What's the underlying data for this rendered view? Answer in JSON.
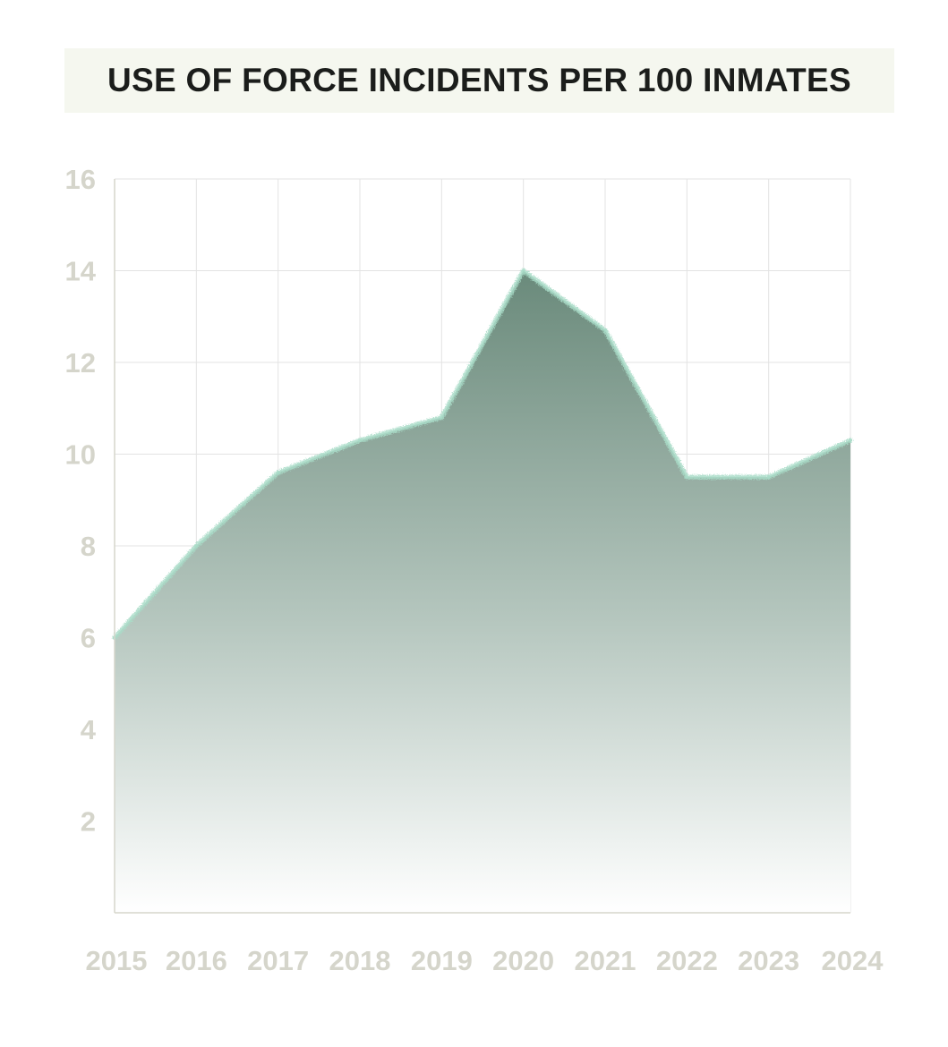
{
  "chart_data": {
    "type": "area",
    "title": "USE OF FORCE INCIDENTS PER 100 INMATES",
    "xlabel": "",
    "ylabel": "",
    "x": [
      "2015",
      "2016",
      "2017",
      "2018",
      "2019",
      "2020",
      "2021",
      "2022",
      "2023",
      "2024"
    ],
    "series": [
      {
        "values": [
          6.0,
          8.0,
          9.6,
          10.3,
          10.8,
          14.0,
          12.7,
          9.5,
          9.5,
          10.3
        ]
      }
    ],
    "ylim": [
      0,
      16
    ],
    "y_ticks": [
      2,
      4,
      6,
      8,
      10,
      12,
      14,
      16
    ],
    "grid": true,
    "colors": {
      "fill_top": "#6a8a7b",
      "fill_bottom": "#ffffff",
      "edge": "#a9dcc8",
      "grid": "#e3e3e3",
      "axis": "#d5d5cb",
      "tick_label": "#d5d5cb",
      "title_bg": "#f5f7ef",
      "title_text": "#1b1d1b"
    }
  }
}
